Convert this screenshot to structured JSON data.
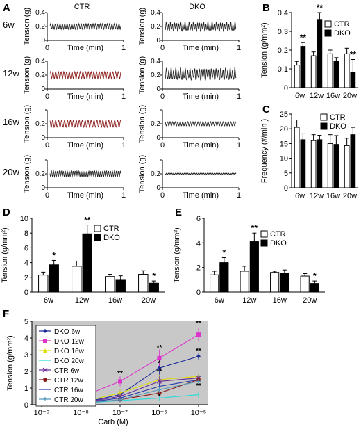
{
  "panel_letters": {
    "A": "A",
    "B": "B",
    "C": "C",
    "D": "D",
    "E": "E",
    "F": "F"
  },
  "panel_a": {
    "col_titles": [
      "CTR",
      "DKO"
    ],
    "row_labels": [
      "6w",
      "12w",
      "16w",
      "20w"
    ],
    "ylabel": "Tension (g)",
    "xlabel": "Time (min)",
    "x_ticks": [
      "0",
      "1"
    ],
    "y_ticks": [
      "0",
      "0.2",
      "0.4"
    ]
  },
  "colors": {
    "ctr_fill": "#ffffff",
    "dko_fill": "#000000",
    "panel_f_bg": "#c8c8c8",
    "trace": "#222222",
    "trace_red": "#8b1a1a"
  },
  "chart_data": [
    {
      "panel": "B",
      "type": "bar",
      "categories": [
        "6w",
        "12w",
        "16w",
        "20w"
      ],
      "series": [
        {
          "name": "CTR",
          "values": [
            0.12,
            0.17,
            0.18,
            0.18
          ],
          "errors": [
            0.02,
            0.02,
            0.02,
            0.03
          ]
        },
        {
          "name": "DKO",
          "values": [
            0.22,
            0.36,
            0.14,
            0.08
          ],
          "errors": [
            0.02,
            0.04,
            0.02,
            0.07
          ]
        }
      ],
      "sig": [
        "**",
        "**",
        "",
        "**"
      ],
      "ylabel": "Tension (g/mm²)",
      "ylim": [
        0,
        0.4
      ],
      "yticks": [
        "0",
        "0.1",
        "0.2",
        "0.3",
        "0.4"
      ],
      "legend_position": "top-right"
    },
    {
      "panel": "C",
      "type": "bar",
      "categories": [
        "6w",
        "12w",
        "16w",
        "20w"
      ],
      "series": [
        {
          "name": "CTR",
          "values": [
            20.5,
            16,
            15,
            14.3
          ],
          "errors": [
            2.5,
            2,
            3,
            2.5
          ]
        },
        {
          "name": "DKO",
          "values": [
            16.3,
            16.3,
            14.7,
            18
          ],
          "errors": [
            2,
            1.5,
            3,
            2.5
          ]
        }
      ],
      "ylabel": "Frequency (#/min )",
      "ylim": [
        0,
        25
      ],
      "yticks": [
        "0",
        "5",
        "10",
        "15",
        "20",
        "25"
      ],
      "legend_position": "top-right"
    },
    {
      "panel": "D",
      "type": "bar",
      "categories": [
        "6w",
        "12w",
        "16w",
        "20w"
      ],
      "series": [
        {
          "name": "CTR",
          "values": [
            2.3,
            3.5,
            2.1,
            2.4
          ],
          "errors": [
            0.4,
            0.7,
            0.3,
            0.5
          ]
        },
        {
          "name": "DKO",
          "values": [
            3.7,
            7.9,
            1.7,
            1.2
          ],
          "errors": [
            0.6,
            1.2,
            0.5,
            0.3
          ]
        }
      ],
      "sig": [
        "*",
        "**",
        "",
        "*"
      ],
      "ylabel": "Tension (g/mm²)",
      "ylim": [
        0,
        10
      ],
      "yticks": [
        "0",
        "2",
        "4",
        "6",
        "8",
        "10"
      ],
      "legend_position": "top-right"
    },
    {
      "panel": "E",
      "type": "bar",
      "categories": [
        "6w",
        "12w",
        "16w",
        "20w"
      ],
      "series": [
        {
          "name": "CTR",
          "values": [
            1.4,
            1.7,
            1.6,
            1.3
          ],
          "errors": [
            0.3,
            0.4,
            0.1,
            0.2
          ]
        },
        {
          "name": "DKO",
          "values": [
            2.4,
            4.1,
            1.5,
            0.7
          ],
          "errors": [
            0.4,
            0.7,
            0.3,
            0.2
          ]
        }
      ],
      "sig": [
        "*",
        "**",
        "",
        "*"
      ],
      "ylabel": "Tension (g/mm²)",
      "ylim": [
        0,
        6
      ],
      "yticks": [
        "0",
        "2",
        "4",
        "6"
      ],
      "legend_position": "top-right"
    },
    {
      "panel": "F",
      "type": "line",
      "x": [
        "10⁻⁹",
        "10⁻⁸",
        "10⁻⁷",
        "10⁻⁶",
        "10⁻⁵"
      ],
      "xlabel": "Carb (M)",
      "ylabel": "Tension (g/mm²)",
      "ylim": [
        0,
        5
      ],
      "yticks": [
        "0",
        "1",
        "2",
        "3",
        "4",
        "5"
      ],
      "series": [
        {
          "name": "DKO  6w",
          "color": "#1a2a9a",
          "marker": "diamond",
          "values": [
            0.1,
            0.1,
            0.6,
            2.2,
            2.9
          ],
          "errors": [
            0.1,
            0.1,
            0.3,
            0.5,
            0.2
          ]
        },
        {
          "name": "DKO  12w",
          "color": "#dd33cc",
          "marker": "square",
          "values": [
            0.2,
            0.45,
            1.4,
            2.8,
            4.2
          ],
          "errors": [
            0.1,
            0.6,
            0.3,
            0.5,
            0.4
          ]
        },
        {
          "name": "DKO  16w",
          "color": "#dddd00",
          "marker": "triangle",
          "values": [
            0.1,
            0.15,
            0.7,
            1.5,
            1.7
          ],
          "errors": [
            0.1,
            0.1,
            0.2,
            0.3,
            0.2
          ]
        },
        {
          "name": "DKO  20w",
          "color": "#22dddd",
          "marker": "none",
          "values": [
            0.05,
            0.08,
            0.25,
            0.4,
            0.6
          ],
          "errors": [
            0.05,
            0.05,
            0.1,
            0.15,
            0.2
          ]
        },
        {
          "name": "CTR  6w",
          "color": "#6a2a9a",
          "marker": "x",
          "values": [
            0.05,
            0.1,
            0.5,
            1.4,
            1.6
          ],
          "errors": [
            0.05,
            0.1,
            0.2,
            0.3,
            0.2
          ]
        },
        {
          "name": "CTR  12w",
          "color": "#8b1a1a",
          "marker": "circle",
          "values": [
            0.05,
            0.08,
            0.3,
            0.7,
            1.5
          ],
          "errors": [
            0.05,
            0.05,
            0.1,
            0.2,
            0.2
          ]
        },
        {
          "name": "CTR  16w",
          "color": "#2a3aaa",
          "marker": "none",
          "values": [
            0.05,
            0.1,
            0.4,
            1.1,
            1.5
          ],
          "errors": [
            0.05,
            0.05,
            0.1,
            0.2,
            0.2
          ]
        },
        {
          "name": "CTR  20w",
          "color": "#5599bb",
          "marker": "plus",
          "values": [
            0.05,
            0.08,
            0.3,
            0.9,
            1.4
          ],
          "errors": [
            0.05,
            0.05,
            0.1,
            0.2,
            0.2
          ]
        }
      ],
      "sig_labels": [
        {
          "x": 2,
          "y": 1.75,
          "text": "**"
        },
        {
          "x": 3,
          "y": 3.3,
          "text": "**"
        },
        {
          "x": 3,
          "y": 2.35,
          "text": "*"
        },
        {
          "x": 3,
          "y": 1.85,
          "text": "**"
        },
        {
          "x": 3,
          "y": 0.35,
          "text": "*"
        },
        {
          "x": 4,
          "y": 4.75,
          "text": "**"
        },
        {
          "x": 4,
          "y": 3.1,
          "text": "**"
        },
        {
          "x": 4,
          "y": 1.0,
          "text": "**"
        }
      ]
    }
  ]
}
